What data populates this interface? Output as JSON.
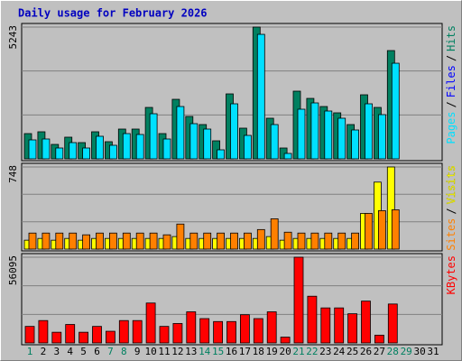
{
  "chart_data": {
    "type": "bar",
    "title": "Daily usage for February 2026",
    "categories": [
      "1",
      "2",
      "3",
      "4",
      "5",
      "6",
      "7",
      "8",
      "9",
      "10",
      "11",
      "12",
      "13",
      "14",
      "15",
      "16",
      "17",
      "18",
      "19",
      "20",
      "21",
      "22",
      "23",
      "24",
      "25",
      "26",
      "27",
      "28",
      "29",
      "30",
      "31"
    ],
    "category_colors": [
      "#008060",
      "#000000",
      "#000000",
      "#000000",
      "#000000",
      "#000000",
      "#008060",
      "#008060",
      "#000000",
      "#000000",
      "#000000",
      "#000000",
      "#000000",
      "#008060",
      "#008060",
      "#000000",
      "#000000",
      "#000000",
      "#000000",
      "#000000",
      "#008060",
      "#008060",
      "#000000",
      "#000000",
      "#000000",
      "#000000",
      "#000000",
      "#008060",
      "#008060",
      "#000000",
      "#000000"
    ],
    "legend_separator": "/",
    "panels": [
      {
        "ylim": [
          0,
          5243
        ],
        "yticks": [
          5243
        ],
        "gridlines": [
          1748,
          3495
        ],
        "series": [
          {
            "name": "Pages",
            "color": "#00e0ff",
            "values": [
              754,
              790,
              431,
              646,
              431,
              898,
              539,
              1005,
              969,
              1795,
              790,
              2082,
              1400,
              1185,
              359,
              2190,
              933,
              4954,
              1364,
              215,
              1975,
              2226,
              1903,
              1616,
              1149,
              2190,
              1759,
              3805,
              null,
              null,
              null
            ]
          },
          {
            "name": "Files",
            "color": "#0000ff",
            "values": [
              null,
              null,
              null,
              null,
              null,
              null,
              null,
              null,
              null,
              null,
              null,
              null,
              null,
              null,
              null,
              null,
              null,
              null,
              null,
              null,
              null,
              null,
              null,
              null,
              null,
              null,
              null,
              null,
              null,
              null,
              null
            ]
          },
          {
            "name": "Hits",
            "color": "#008060",
            "values": [
              1005,
              1077,
              574,
              862,
              646,
              1077,
              682,
              1185,
              1185,
              2046,
              1005,
              2369,
              1687,
              1364,
              718,
              2585,
              1221,
              5243,
              1616,
              431,
              2693,
              2405,
              2082,
              1831,
              1364,
              2549,
              2046,
              4308,
              null,
              null,
              null
            ]
          }
        ]
      },
      {
        "ylim": [
          0,
          748
        ],
        "yticks": [
          748
        ],
        "gridlines": [
          249,
          499
        ],
        "series": [
          {
            "name": "Sites",
            "color": "#ff8000",
            "values": [
              146,
              146,
              146,
              146,
              130,
              146,
              146,
              146,
              146,
              146,
              130,
              228,
              146,
              146,
              146,
              146,
              146,
              178,
              276,
              154,
              146,
              146,
              146,
              146,
              146,
              325,
              350,
              358,
              null,
              null,
              null
            ]
          },
          {
            "name": "Visits",
            "color": "#ffff00",
            "values": [
              81,
              97,
              81,
              97,
              81,
              97,
              97,
              97,
              97,
              97,
              97,
              114,
              97,
              97,
              97,
              97,
              97,
              97,
              114,
              81,
              97,
              97,
              97,
              97,
              97,
              325,
              610,
              748,
              null,
              null,
              null
            ]
          }
        ]
      },
      {
        "ylim": [
          0,
          56095
        ],
        "yticks": [
          56095
        ],
        "gridlines": [
          18698,
          37397
        ],
        "series": [
          {
            "name": "KBytes",
            "color": "#ff0000",
            "values": [
              10830,
              14650,
              7000,
              12100,
              7000,
              10830,
              7640,
              14650,
              14650,
              26120,
              10830,
              12740,
              20380,
              15925,
              14010,
              14010,
              18470,
              15925,
              20380,
              3820,
              56095,
              30580,
              22930,
              22930,
              19110,
              27390,
              5100,
              25480,
              null,
              null,
              null
            ]
          }
        ]
      }
    ]
  }
}
